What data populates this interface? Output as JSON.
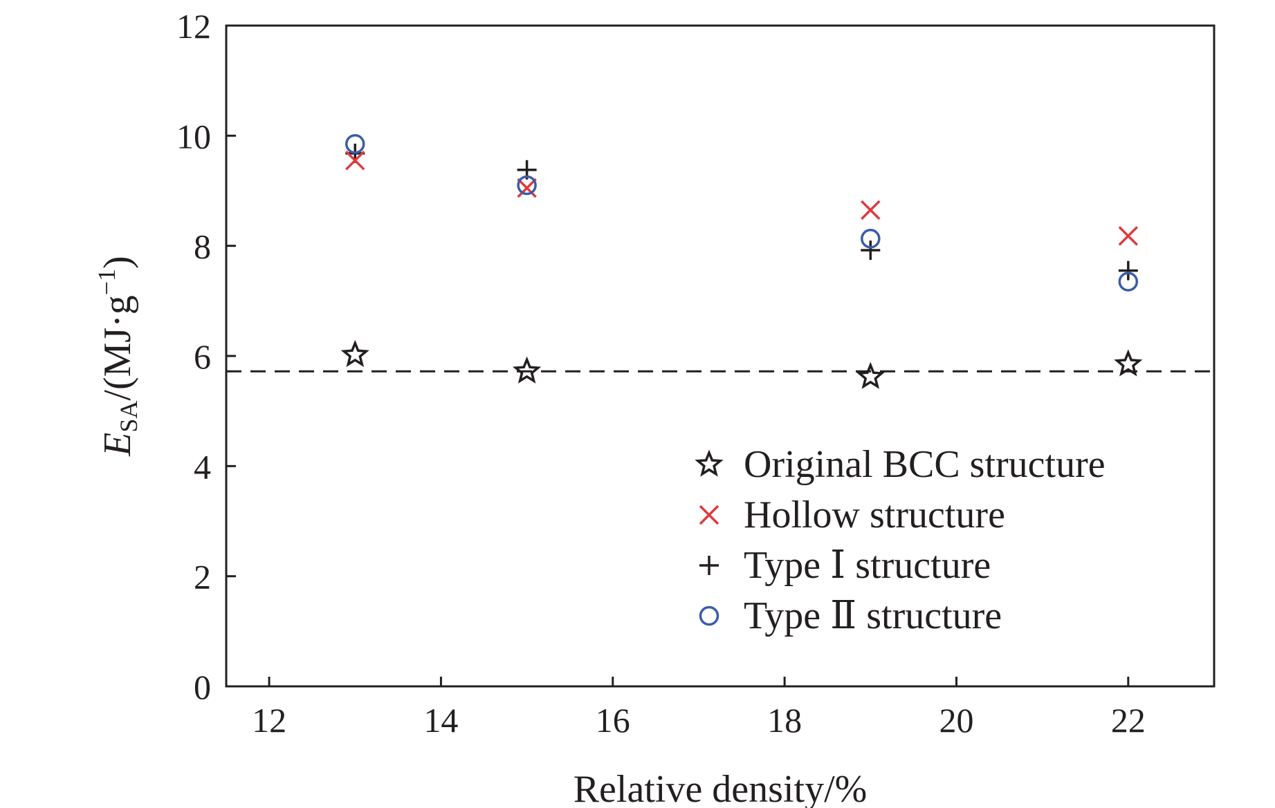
{
  "chart_data": {
    "type": "scatter",
    "title": "",
    "xlabel": "Relative density/%",
    "ylabel": {
      "symbol": "E",
      "subscript": "SA",
      "units_prefix": "/(MJ·g",
      "units_exponent": "−1",
      "units_suffix": ")"
    },
    "xlim": [
      11.5,
      23.0
    ],
    "ylim": [
      0,
      12
    ],
    "xticks": [
      12,
      14,
      16,
      18,
      20,
      22
    ],
    "yticks": [
      0,
      2,
      4,
      6,
      8,
      10,
      12
    ],
    "xtick_labels": [
      "12",
      "14",
      "16",
      "18",
      "20",
      "22"
    ],
    "ytick_labels": [
      "0",
      "2",
      "4",
      "6",
      "8",
      "10",
      "12"
    ],
    "grid": false,
    "legend_position": "lower-right",
    "reference_line": {
      "style": "dashed",
      "y": 5.72,
      "color": "#231f20"
    },
    "series": [
      {
        "name": "Original BCC structure",
        "marker": "star",
        "color": "#231f20",
        "x": [
          13,
          15,
          19,
          22
        ],
        "y": [
          6.02,
          5.72,
          5.62,
          5.85
        ]
      },
      {
        "name": "Hollow structure",
        "marker": "x",
        "color": "#e03a3e",
        "x": [
          13,
          15,
          19,
          22
        ],
        "y": [
          9.55,
          9.05,
          8.65,
          8.18
        ]
      },
      {
        "name": "Type Ⅰ structure",
        "marker": "plus",
        "color": "#231f20",
        "x": [
          13,
          15,
          19,
          22
        ],
        "y": [
          9.68,
          9.38,
          7.92,
          7.55
        ]
      },
      {
        "name": "Type Ⅱ structure",
        "marker": "circle",
        "color": "#3a5ca8",
        "x": [
          13,
          15,
          19,
          22
        ],
        "y": [
          9.85,
          9.1,
          8.13,
          7.35
        ]
      }
    ]
  }
}
